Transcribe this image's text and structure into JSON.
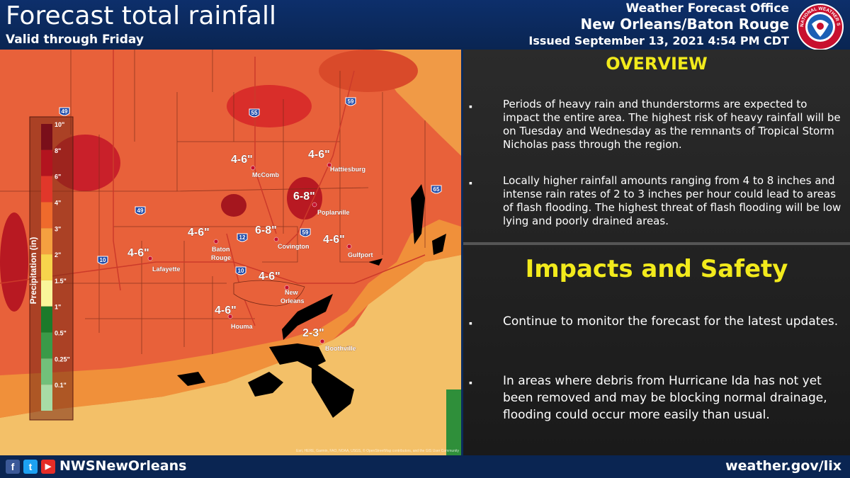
{
  "header": {
    "title": "Forecast total rainfall",
    "subtitle": "Valid through Friday",
    "office_line1": "Weather Forecast Office",
    "office_line2": "New Orleans/Baton Rouge",
    "issued": "Issued September 13, 2021 4:54 PM CDT",
    "logo_text": "NATIONAL WEATHER SERVICE"
  },
  "legend": {
    "title": "Precipitation (in)",
    "levels": [
      {
        "label": "10\"",
        "color": "#7a0f1a"
      },
      {
        "label": "8\"",
        "color": "#b3141f"
      },
      {
        "label": "6\"",
        "color": "#e1372a"
      },
      {
        "label": "4\"",
        "color": "#ef6a2c"
      },
      {
        "label": "3\"",
        "color": "#f5a040"
      },
      {
        "label": "2\"",
        "color": "#f7d44c"
      },
      {
        "label": "1.5\"",
        "color": "#f9f59a"
      },
      {
        "label": "1\"",
        "color": "#1c7a2a"
      },
      {
        "label": "0.5\"",
        "color": "#3a9a48"
      },
      {
        "label": "0.25\"",
        "color": "#72c07a"
      },
      {
        "label": "0.1\"",
        "color": "#a8dca6"
      }
    ]
  },
  "map": {
    "amounts": [
      "4-6\"",
      "4-6\"",
      "6-8\"",
      "6-8\"",
      "4-6\"",
      "4-6\"",
      "4-6\"",
      "4-6\"",
      "4-6\"",
      "2-3\""
    ],
    "cities": [
      "McComb",
      "Hattiesburg",
      "Poplarville",
      "Covington",
      "Baton",
      "Rouge",
      "Lafayette",
      "Gulfport",
      "New",
      "Orleans",
      "Houma",
      "Boothville"
    ],
    "shields": [
      "49",
      "55",
      "59",
      "65",
      "49",
      "12",
      "59",
      "10",
      "10"
    ],
    "attribution": "Esri, HERE, Garmin, FAO, NOAA, USGS, © OpenStreetMap contributors, and the GIS User Community"
  },
  "overview": {
    "title": "OVERVIEW",
    "bullets": [
      "Periods of heavy rain and thunderstorms are expected to impact the entire area.  The highest risk of heavy rainfall will be on Tuesday and Wednesday as the remnants of Tropical Storm Nicholas pass through the region.",
      "Locally higher rainfall amounts ranging from 4 to 8 inches and intense rain rates of 2 to 3 inches per hour could lead to areas of flash flooding.   The highest threat of flash flooding will be low lying and poorly drained areas."
    ]
  },
  "impacts": {
    "title": "Impacts and Safety",
    "bullets": [
      "Continue to monitor the forecast for the latest updates.",
      "In areas where debris from Hurricane Ida has not yet been removed and may be blocking normal drainage, flooding could occur more easily than usual."
    ]
  },
  "footer": {
    "social_facebook": "f",
    "social_twitter": "t",
    "social_youtube": "▶",
    "handle": "NWSNewOrleans",
    "url": "weather.gov/lix"
  },
  "bullet_char": "▪",
  "colors": {
    "accent_yellow": "#f2ea1c",
    "header_blue": "#0d2f6b",
    "gulf_land_light": "#f3c068"
  }
}
